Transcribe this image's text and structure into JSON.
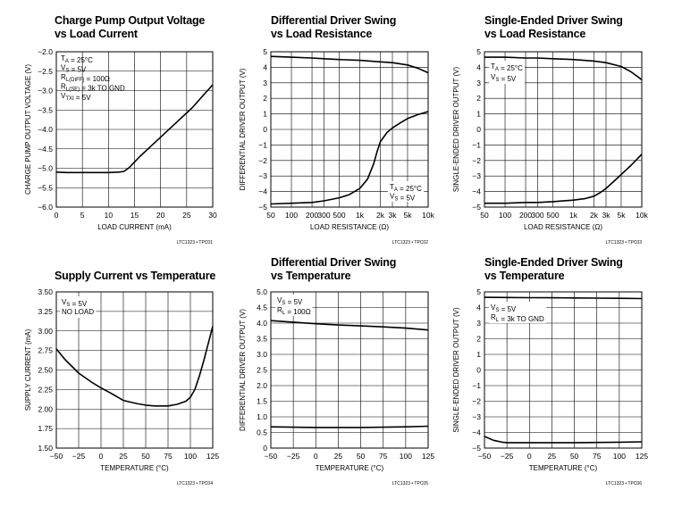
{
  "chart_data": [
    {
      "type": "line",
      "title": [
        "Charge Pump Output Voltage",
        "vs Load Current"
      ],
      "ylabel": "CHARGE PUMP OUTPUT VOLTAGE (V)",
      "xlabel": "LOAD CURRENT (mA)",
      "xlim": [
        0,
        30
      ],
      "ylim": [
        -6.0,
        -2.0
      ],
      "xticks": [
        0,
        5,
        10,
        15,
        20,
        25,
        30
      ],
      "xtick_labels": [
        "0",
        "5",
        "10",
        "15",
        "20",
        "25",
        "30"
      ],
      "yticks": [
        -2.0,
        -2.5,
        -3.0,
        -3.5,
        -4.0,
        -4.5,
        -5.0,
        -5.5,
        -6.0
      ],
      "ytick_labels": [
        "−2.0",
        "−2.5",
        "−3.0",
        "−3.5",
        "−4.0",
        "−4.5",
        "−5.0",
        "−5.5",
        "−6.0"
      ],
      "grid": true,
      "annotations": [
        [
          {
            "t": "T"
          },
          {
            "t": "A",
            "sub": true
          },
          {
            "t": " = 25°C"
          }
        ],
        [
          {
            "t": "V"
          },
          {
            "t": "S",
            "sub": true
          },
          {
            "t": " = 5V"
          }
        ],
        [
          {
            "t": "R"
          },
          {
            "t": "L(DIFF)",
            "sub": true
          },
          {
            "t": " = 100Ω"
          }
        ],
        [
          {
            "t": "R"
          },
          {
            "t": "L(SE)",
            "sub": true
          },
          {
            "t": " = 3k TO GND"
          }
        ],
        [
          {
            "t": "V"
          },
          {
            "t": "TXI",
            "sub": true
          },
          {
            "t": " = 5V"
          }
        ]
      ],
      "annotation_anchor": "top-left",
      "code": "LTC1323 • TPC01",
      "series": [
        {
          "x": [
            0,
            2,
            5,
            8,
            10,
            12,
            13,
            14,
            16,
            18,
            20,
            22,
            24,
            26,
            28,
            30
          ],
          "y": [
            -5.1,
            -5.11,
            -5.11,
            -5.11,
            -5.11,
            -5.1,
            -5.08,
            -4.98,
            -4.7,
            -4.45,
            -4.2,
            -3.95,
            -3.7,
            -3.45,
            -3.15,
            -2.85
          ]
        }
      ]
    },
    {
      "type": "line",
      "title": [
        "Differential Driver Swing",
        "vs Load Resistance"
      ],
      "ylabel": "DIFFERENTIAL DRIVER OUTPUT (V)",
      "xlabel": "LOAD RESISTANCE (Ω)",
      "xscale": "log",
      "xlim": [
        50,
        10000
      ],
      "ylim": [
        -5,
        5
      ],
      "xticks": [
        50,
        100,
        200,
        300,
        500,
        1000,
        2000,
        3000,
        5000,
        10000
      ],
      "xtick_labels": [
        "50",
        "100",
        "200",
        "300",
        "500",
        "1k",
        "2k",
        "3k",
        "5k",
        "10k"
      ],
      "yticks": [
        5,
        4,
        3,
        2,
        1,
        0,
        -1,
        -2,
        -3,
        -4,
        -5
      ],
      "ytick_labels": [
        "5",
        "4",
        "3",
        "2",
        "1",
        "0",
        "−1",
        "−2",
        "−3",
        "−4",
        "−5"
      ],
      "grid": true,
      "annotations": [
        [
          {
            "t": "T"
          },
          {
            "t": "A",
            "sub": true
          },
          {
            "t": " = 25°C"
          }
        ],
        [
          {
            "t": "V"
          },
          {
            "t": "S",
            "sub": true
          },
          {
            "t": " = 5V"
          }
        ]
      ],
      "annotation_anchor": "bottom-right",
      "code": "LTC1323 • TPC02",
      "series": [
        {
          "x": [
            50,
            100,
            200,
            300,
            500,
            1000,
            2000,
            3000,
            5000,
            7000,
            10000
          ],
          "y": [
            4.7,
            4.65,
            4.6,
            4.55,
            4.5,
            4.45,
            4.35,
            4.3,
            4.15,
            3.95,
            3.65
          ]
        },
        {
          "x": [
            50,
            100,
            200,
            300,
            500,
            700,
            1000,
            1300,
            1600,
            1800,
            2000,
            2500,
            3000,
            4000,
            5000,
            7000,
            10000
          ],
          "y": [
            -4.8,
            -4.75,
            -4.7,
            -4.6,
            -4.4,
            -4.2,
            -3.8,
            -3.2,
            -2.2,
            -1.4,
            -0.8,
            -0.2,
            0.1,
            0.45,
            0.7,
            0.95,
            1.15
          ]
        }
      ]
    },
    {
      "type": "line",
      "title": [
        "Single-Ended Driver Swing",
        "vs Load Resistance"
      ],
      "ylabel": "SINGLE-ENDED DRIVER OUTPUT (V)",
      "xlabel": "LOAD RESISTANCE (Ω)",
      "xscale": "log",
      "xlim": [
        50,
        10000
      ],
      "ylim": [
        -5,
        5
      ],
      "xticks": [
        50,
        100,
        200,
        300,
        500,
        1000,
        2000,
        3000,
        5000,
        10000
      ],
      "xtick_labels": [
        "50",
        "100",
        "200",
        "300",
        "500",
        "1k",
        "2k",
        "3k",
        "5k",
        "10k"
      ],
      "yticks": [
        5,
        4,
        3,
        2,
        1,
        0,
        -1,
        -2,
        -3,
        -4,
        -5
      ],
      "ytick_labels": [
        "5",
        "4",
        "3",
        "2",
        "1",
        "0",
        "−1",
        "−2",
        "−3",
        "−4",
        "−5"
      ],
      "grid": true,
      "annotations": [
        [
          {
            "t": "T"
          },
          {
            "t": "A",
            "sub": true
          },
          {
            "t": " = 25°C"
          }
        ],
        [
          {
            "t": "V"
          },
          {
            "t": "S",
            "sub": true
          },
          {
            "t": " = 5V"
          }
        ]
      ],
      "annotation_anchor": "top-left",
      "code": "LTC1323 • TPC03",
      "series": [
        {
          "x": [
            50,
            100,
            200,
            300,
            500,
            1000,
            2000,
            3000,
            5000,
            7000,
            10000
          ],
          "y": [
            4.65,
            4.65,
            4.6,
            4.6,
            4.55,
            4.5,
            4.4,
            4.3,
            4.05,
            3.7,
            3.2
          ]
        },
        {
          "x": [
            50,
            100,
            200,
            300,
            500,
            1000,
            1500,
            2000,
            2500,
            3000,
            4000,
            5000,
            7000,
            10000
          ],
          "y": [
            -4.75,
            -4.75,
            -4.7,
            -4.7,
            -4.65,
            -4.55,
            -4.45,
            -4.3,
            -4.05,
            -3.8,
            -3.3,
            -2.9,
            -2.3,
            -1.6
          ]
        }
      ]
    },
    {
      "type": "line",
      "title": [
        "Supply Current vs Temperature"
      ],
      "ylabel": "SUPPLY CURRENT (mA)",
      "xlabel": "TEMPERATURE (°C)",
      "xlim": [
        -50,
        125
      ],
      "ylim": [
        1.5,
        3.5
      ],
      "xticks": [
        -50,
        -25,
        0,
        25,
        50,
        75,
        100,
        125
      ],
      "xtick_labels": [
        "−50",
        "−25",
        "0",
        "25",
        "50",
        "75",
        "100",
        "125"
      ],
      "yticks": [
        3.5,
        3.25,
        3.0,
        2.75,
        2.5,
        2.25,
        2.0,
        1.75,
        1.5
      ],
      "ytick_labels": [
        "3.50",
        "3.25",
        "3.00",
        "2.75",
        "2.50",
        "2.25",
        "2.00",
        "1.75",
        "1.50"
      ],
      "grid": true,
      "annotations": [
        [
          {
            "t": "V"
          },
          {
            "t": "S",
            "sub": true
          },
          {
            "t": " = 5V"
          }
        ],
        [
          {
            "t": "NO LOAD"
          }
        ]
      ],
      "annotation_anchor": "top-left",
      "code": "LTC1323 • TPC04",
      "series": [
        {
          "x": [
            -50,
            -40,
            -25,
            -10,
            0,
            10,
            25,
            40,
            50,
            60,
            75,
            85,
            95,
            100,
            105,
            110,
            115,
            120,
            125
          ],
          "y": [
            2.77,
            2.63,
            2.46,
            2.34,
            2.27,
            2.21,
            2.11,
            2.07,
            2.05,
            2.04,
            2.04,
            2.06,
            2.1,
            2.15,
            2.25,
            2.42,
            2.62,
            2.84,
            3.06
          ]
        }
      ]
    },
    {
      "type": "line",
      "title": [
        "Differential Driver Swing",
        "vs Temperature"
      ],
      "ylabel": "DIFFERENTIAL DRIVER OUTPUT (V)",
      "xlabel": "TEMPERATURE (°C)",
      "xlim": [
        -50,
        125
      ],
      "ylim": [
        0,
        5.0
      ],
      "xticks": [
        -50,
        -25,
        0,
        25,
        50,
        75,
        100,
        125
      ],
      "xtick_labels": [
        "−50",
        "−25",
        "0",
        "25",
        "50",
        "75",
        "100",
        "125"
      ],
      "yticks": [
        5.0,
        4.5,
        4.0,
        3.5,
        3.0,
        2.5,
        2.0,
        1.5,
        1.0,
        0.5,
        0
      ],
      "ytick_labels": [
        "5.0",
        "4.5",
        "4.0",
        "3.5",
        "3.0",
        "2.5",
        "2.0",
        "1.5",
        "1.0",
        "0.5",
        "0"
      ],
      "grid": true,
      "annotations": [
        [
          {
            "t": "V"
          },
          {
            "t": "S",
            "sub": true
          },
          {
            "t": " = 5V"
          }
        ],
        [
          {
            "t": "R"
          },
          {
            "t": "L",
            "sub": true
          },
          {
            "t": " = 100Ω"
          }
        ]
      ],
      "annotation_anchor": "top-left",
      "code": "LTC1323 • TPC05",
      "series": [
        {
          "x": [
            -50,
            -25,
            0,
            25,
            50,
            75,
            100,
            125
          ],
          "y": [
            4.08,
            4.03,
            3.98,
            3.94,
            3.91,
            3.88,
            3.84,
            3.78
          ]
        },
        {
          "x": [
            -50,
            -25,
            0,
            25,
            50,
            75,
            100,
            125
          ],
          "y": [
            0.68,
            0.67,
            0.66,
            0.66,
            0.66,
            0.67,
            0.68,
            0.7
          ]
        }
      ]
    },
    {
      "type": "line",
      "title": [
        "Single-Ended Driver Swing",
        "vs Temperature"
      ],
      "ylabel": "SINGLE-ENDED DRIVER OUTPUT (V)",
      "xlabel": "TEMPERATURE (°C)",
      "xlim": [
        -50,
        125
      ],
      "ylim": [
        -5,
        5
      ],
      "xticks": [
        -50,
        -25,
        0,
        25,
        50,
        75,
        100,
        125
      ],
      "xtick_labels": [
        "−50",
        "−25",
        "0",
        "25",
        "50",
        "75",
        "100",
        "125"
      ],
      "yticks": [
        5,
        4,
        3,
        2,
        1,
        0,
        -1,
        -2,
        -3,
        -4,
        -5
      ],
      "ytick_labels": [
        "5",
        "4",
        "3",
        "2",
        "1",
        "0",
        "−1",
        "−2",
        "−3",
        "−4",
        "−5"
      ],
      "grid": true,
      "annotations": [
        [
          {
            "t": "V"
          },
          {
            "t": "S",
            "sub": true
          },
          {
            "t": " = 5V"
          }
        ],
        [
          {
            "t": "R"
          },
          {
            "t": "L",
            "sub": true
          },
          {
            "t": " = 3k TO GND"
          }
        ]
      ],
      "annotation_anchor": "top-left",
      "code": "LTC1323 • TPC06",
      "series": [
        {
          "x": [
            -50,
            -25,
            0,
            25,
            50,
            75,
            100,
            125
          ],
          "y": [
            4.65,
            4.64,
            4.63,
            4.62,
            4.61,
            4.6,
            4.59,
            4.57
          ]
        },
        {
          "x": [
            -50,
            -40,
            -30,
            -25,
            0,
            25,
            50,
            75,
            100,
            125
          ],
          "y": [
            -4.25,
            -4.5,
            -4.62,
            -4.65,
            -4.65,
            -4.65,
            -4.65,
            -4.64,
            -4.62,
            -4.6
          ]
        }
      ]
    }
  ]
}
